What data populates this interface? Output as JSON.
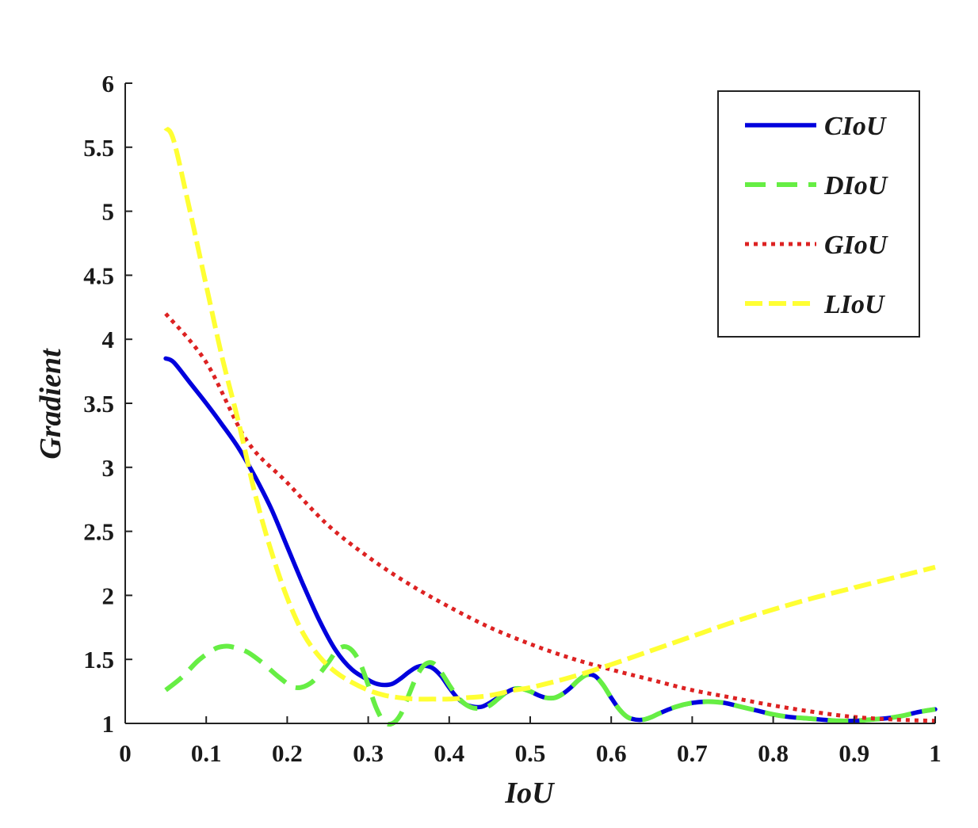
{
  "chart_data": {
    "type": "line",
    "xlabel": "IoU",
    "ylabel": "Gradient",
    "xlim": [
      0,
      1
    ],
    "ylim": [
      1,
      6
    ],
    "x_ticks": [
      0,
      0.1,
      0.2,
      0.3,
      0.4,
      0.5,
      0.6,
      0.7,
      0.8,
      0.9,
      1
    ],
    "x_tick_labels": [
      "0",
      "0.1",
      "0.2",
      "0.3",
      "0.4",
      "0.5",
      "0.6",
      "0.7",
      "0.8",
      "0.9",
      "1"
    ],
    "y_ticks": [
      1,
      1.5,
      2,
      2.5,
      3,
      3.5,
      4,
      4.5,
      5,
      5.5,
      6
    ],
    "y_tick_labels": [
      "1",
      "1.5",
      "2",
      "2.5",
      "3",
      "3.5",
      "4",
      "4.5",
      "5",
      "5.5",
      "6"
    ],
    "grid": false,
    "legend_position": "top-right",
    "series": [
      {
        "name": "CIoU",
        "color": "#0000dd",
        "style": "solid",
        "x": [
          0.05,
          0.06,
          0.08,
          0.1,
          0.12,
          0.14,
          0.16,
          0.18,
          0.2,
          0.22,
          0.24,
          0.26,
          0.28,
          0.3,
          0.31,
          0.32,
          0.33,
          0.34,
          0.35,
          0.36,
          0.37,
          0.38,
          0.39,
          0.4,
          0.41,
          0.42,
          0.43,
          0.44,
          0.45,
          0.46,
          0.47,
          0.48,
          0.49,
          0.5,
          0.51,
          0.52,
          0.53,
          0.54,
          0.55,
          0.56,
          0.57,
          0.58,
          0.59,
          0.6,
          0.61,
          0.62,
          0.63,
          0.64,
          0.65,
          0.66,
          0.68,
          0.7,
          0.72,
          0.74,
          0.76,
          0.78,
          0.8,
          0.82,
          0.84,
          0.86,
          0.88,
          0.9,
          0.92,
          0.94,
          0.96,
          0.98,
          1.0
        ],
        "y": [
          3.85,
          3.82,
          3.66,
          3.5,
          3.33,
          3.15,
          2.93,
          2.68,
          2.38,
          2.08,
          1.8,
          1.57,
          1.42,
          1.34,
          1.31,
          1.3,
          1.31,
          1.35,
          1.4,
          1.44,
          1.45,
          1.43,
          1.37,
          1.28,
          1.2,
          1.15,
          1.13,
          1.13,
          1.16,
          1.2,
          1.24,
          1.27,
          1.27,
          1.25,
          1.22,
          1.2,
          1.2,
          1.23,
          1.28,
          1.34,
          1.38,
          1.37,
          1.3,
          1.2,
          1.11,
          1.05,
          1.03,
          1.03,
          1.05,
          1.08,
          1.13,
          1.16,
          1.17,
          1.16,
          1.13,
          1.1,
          1.07,
          1.05,
          1.04,
          1.03,
          1.02,
          1.02,
          1.03,
          1.04,
          1.06,
          1.09,
          1.11
        ]
      },
      {
        "name": "DIoU",
        "color": "#66ee44",
        "style": "dashed",
        "x": [
          0.05,
          0.07,
          0.09,
          0.11,
          0.12,
          0.13,
          0.15,
          0.17,
          0.19,
          0.21,
          0.23,
          0.25,
          0.26,
          0.27,
          0.28,
          0.29,
          0.3,
          0.31,
          0.32,
          0.33,
          0.34,
          0.35,
          0.36,
          0.37,
          0.38,
          0.39,
          0.4,
          0.41,
          0.42,
          0.43,
          0.44,
          0.45,
          0.46,
          0.47,
          0.48,
          0.49,
          0.5,
          0.51,
          0.52,
          0.53,
          0.54,
          0.55,
          0.56,
          0.57,
          0.58,
          0.59,
          0.6,
          0.61,
          0.62,
          0.63,
          0.64,
          0.65,
          0.66,
          0.68,
          0.7,
          0.72,
          0.74,
          0.76,
          0.78,
          0.8,
          0.82,
          0.84,
          0.86,
          0.88,
          0.9,
          0.92,
          0.94,
          0.96,
          0.98,
          1.0
        ],
        "y": [
          1.26,
          1.36,
          1.49,
          1.58,
          1.6,
          1.6,
          1.56,
          1.47,
          1.36,
          1.28,
          1.32,
          1.47,
          1.56,
          1.6,
          1.57,
          1.47,
          1.3,
          1.12,
          1.01,
          1.0,
          1.07,
          1.22,
          1.37,
          1.46,
          1.47,
          1.4,
          1.3,
          1.21,
          1.15,
          1.12,
          1.12,
          1.14,
          1.19,
          1.24,
          1.27,
          1.27,
          1.25,
          1.22,
          1.2,
          1.2,
          1.23,
          1.28,
          1.34,
          1.38,
          1.37,
          1.3,
          1.2,
          1.11,
          1.05,
          1.03,
          1.03,
          1.05,
          1.08,
          1.13,
          1.16,
          1.17,
          1.16,
          1.13,
          1.1,
          1.07,
          1.05,
          1.04,
          1.03,
          1.02,
          1.02,
          1.03,
          1.04,
          1.06,
          1.09,
          1.11
        ]
      },
      {
        "name": "GIoU",
        "color": "#dd2222",
        "style": "dotted",
        "x": [
          0.05,
          0.1,
          0.15,
          0.2,
          0.25,
          0.3,
          0.35,
          0.4,
          0.45,
          0.5,
          0.55,
          0.6,
          0.65,
          0.7,
          0.75,
          0.8,
          0.85,
          0.9,
          0.95,
          1.0
        ],
        "y": [
          4.2,
          3.82,
          3.21,
          2.88,
          2.55,
          2.3,
          2.09,
          1.91,
          1.75,
          1.62,
          1.51,
          1.42,
          1.34,
          1.26,
          1.2,
          1.14,
          1.09,
          1.05,
          1.03,
          1.02
        ]
      },
      {
        "name": "LIoU",
        "color": "#ffff33",
        "style": "dashed",
        "x": [
          0.05,
          0.06,
          0.08,
          0.1,
          0.12,
          0.14,
          0.16,
          0.18,
          0.2,
          0.22,
          0.24,
          0.26,
          0.28,
          0.3,
          0.32,
          0.34,
          0.36,
          0.38,
          0.4,
          0.42,
          0.44,
          0.46,
          0.48,
          0.5,
          0.55,
          0.6,
          0.65,
          0.7,
          0.75,
          0.8,
          0.85,
          0.9,
          0.95,
          1.0
        ],
        "y": [
          5.65,
          5.55,
          5.0,
          4.42,
          3.85,
          3.35,
          2.8,
          2.35,
          1.98,
          1.7,
          1.52,
          1.4,
          1.32,
          1.26,
          1.22,
          1.2,
          1.19,
          1.19,
          1.19,
          1.2,
          1.21,
          1.23,
          1.26,
          1.28,
          1.36,
          1.46,
          1.57,
          1.68,
          1.79,
          1.89,
          1.98,
          2.06,
          2.14,
          2.22
        ]
      }
    ]
  }
}
